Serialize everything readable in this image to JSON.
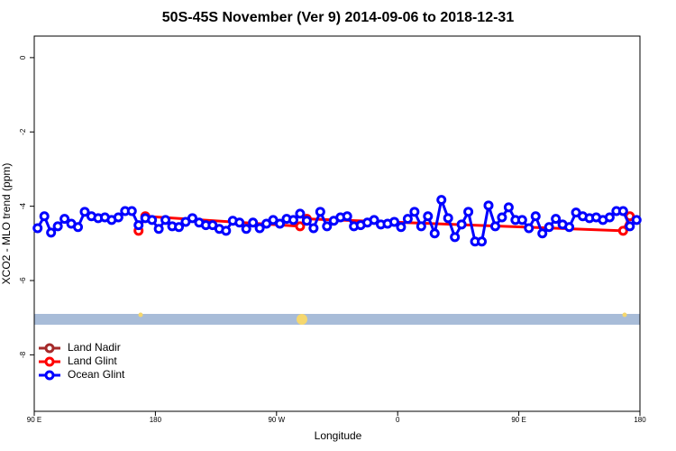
{
  "chart_data": {
    "type": "line",
    "title": "50S-45S November (Ver 9)   2014-09-06 to 2018-12-31",
    "xlabel": "Longitude",
    "ylabel": "XCO2 - MLO trend (ppm)",
    "xlim": [
      90,
      540
    ],
    "xticks": [
      {
        "value": 90,
        "label": "90 E"
      },
      180,
      {
        "value": 270,
        "label": "90 W"
      },
      {
        "value": 360,
        "label": "0"
      },
      {
        "value": 450,
        "label": "90 E"
      },
      {
        "value": 540,
        "label": "180"
      }
    ],
    "ylim": [
      -9.52,
      0.58
    ],
    "yticks": [
      0,
      -2,
      -4,
      -6,
      -8
    ],
    "legend": "bottomleft",
    "series": [
      {
        "name": "Land Nadir",
        "color": "#a52a2a",
        "x": [],
        "values": []
      },
      {
        "name": "Land Glint",
        "color": "#ff0000",
        "x": [
          167.5,
          172.5,
          287.5,
          292.5,
          527.5,
          532.5
        ],
        "values": [
          -4.66,
          -4.27,
          -4.54,
          -4.34,
          -4.66,
          -4.27
        ]
      },
      {
        "name": "Ocean Glint",
        "color": "#0000ff",
        "x": [
          92.5,
          97.5,
          102.5,
          107.5,
          112.5,
          117.5,
          122.5,
          127.5,
          132.5,
          137.5,
          142.5,
          147.5,
          152.5,
          157.5,
          162.5,
          167.5,
          172.5,
          177.5,
          182.5,
          187.5,
          192.5,
          197.5,
          202.5,
          207.5,
          212.5,
          217.5,
          222.5,
          227.5,
          232.5,
          237.5,
          242.5,
          247.5,
          252.5,
          257.5,
          262.5,
          267.5,
          272.5,
          277.5,
          282.5,
          287.5,
          292.5,
          297.5,
          302.5,
          307.5,
          312.5,
          317.5,
          322.5,
          327.5,
          332.5,
          337.5,
          342.5,
          347.5,
          352.5,
          357.5,
          362.5,
          367.5,
          372.5,
          377.5,
          382.5,
          387.5,
          392.5,
          397.5,
          402.5,
          407.5,
          412.5,
          417.5,
          422.5,
          427.5,
          432.5,
          437.5,
          442.5,
          447.5,
          452.5,
          457.5,
          462.5,
          467.5,
          472.5,
          477.5,
          482.5,
          487.5,
          492.5,
          497.5,
          502.5,
          507.5,
          512.5,
          517.5,
          522.5,
          527.5,
          532.5,
          537.5
        ],
        "values": [
          -4.59,
          -4.27,
          -4.71,
          -4.54,
          -4.34,
          -4.47,
          -4.56,
          -4.15,
          -4.27,
          -4.32,
          -4.3,
          -4.37,
          -4.3,
          -4.13,
          -4.13,
          -4.51,
          -4.32,
          -4.37,
          -4.61,
          -4.37,
          -4.54,
          -4.56,
          -4.42,
          -4.32,
          -4.44,
          -4.51,
          -4.51,
          -4.61,
          -4.66,
          -4.39,
          -4.44,
          -4.61,
          -4.44,
          -4.59,
          -4.47,
          -4.37,
          -4.47,
          -4.34,
          -4.37,
          -4.2,
          -4.39,
          -4.59,
          -4.15,
          -4.54,
          -4.39,
          -4.3,
          -4.27,
          -4.54,
          -4.51,
          -4.44,
          -4.37,
          -4.49,
          -4.47,
          -4.42,
          -4.56,
          -4.34,
          -4.15,
          -4.54,
          -4.27,
          -4.73,
          -3.83,
          -4.32,
          -4.83,
          -4.49,
          -4.15,
          -4.95,
          -4.95,
          -3.98,
          -4.54,
          -4.3,
          -4.03,
          -4.37,
          -4.37,
          -4.59,
          -4.27,
          -4.73,
          -4.56,
          -4.34,
          -4.49,
          -4.56,
          -4.17,
          -4.27,
          -4.32,
          -4.3,
          -4.37,
          -4.3,
          -4.13,
          -4.13,
          -4.54,
          -4.37
        ]
      }
    ]
  }
}
